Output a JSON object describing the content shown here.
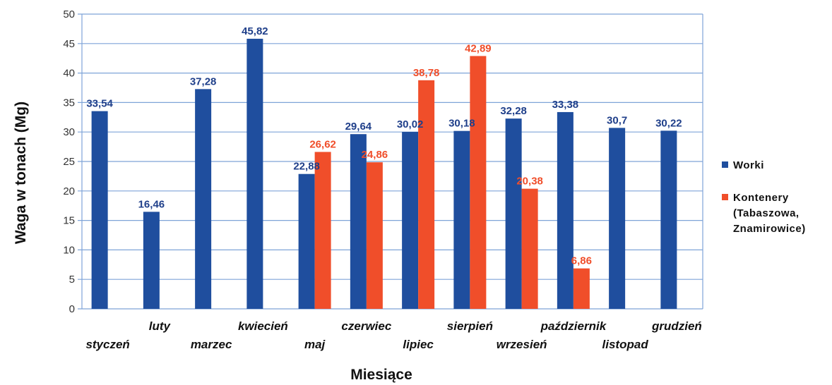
{
  "chart_data": {
    "type": "bar",
    "xlabel": "Miesiące",
    "ylabel": "Waga w tonach (Mg)",
    "ylim": [
      0,
      50
    ],
    "yticks": [
      0,
      5,
      10,
      15,
      20,
      25,
      30,
      35,
      40,
      45,
      50
    ],
    "grid": true,
    "legend_position": "right",
    "categories": [
      "styczeń",
      "luty",
      "marzec",
      "kwiecień",
      "maj",
      "czerwiec",
      "lipiec",
      "sierpień",
      "wrzesień",
      "październik",
      "listopad",
      "grudzień"
    ],
    "series": [
      {
        "name": "Worki",
        "color": "#1f4e9e",
        "label_color": "#1f3f8a",
        "values": [
          33.54,
          16.46,
          37.28,
          45.82,
          22.88,
          29.64,
          30.02,
          30.18,
          32.28,
          33.38,
          30.7,
          30.22
        ],
        "labels": [
          "33,54",
          "16,46",
          "37,28",
          "45,82",
          "22,88",
          "29,64",
          "30,02",
          "30,18",
          "32,28",
          "33,38",
          "30,7",
          "30,22"
        ]
      },
      {
        "name": "Kontenery (Tabaszowa, Znamirowice)",
        "name_lines": [
          "Kontenery",
          "(Tabaszowa,",
          "Znamirowice)"
        ],
        "color": "#f04e2a",
        "label_color": "#f04e2a",
        "values": [
          null,
          null,
          null,
          null,
          26.62,
          24.86,
          38.78,
          42.89,
          20.38,
          6.86,
          null,
          null
        ],
        "labels": [
          "",
          "",
          "",
          "",
          "26,62",
          "24,86",
          "38,78",
          "42,89",
          "20,38",
          "6,86",
          "",
          ""
        ]
      }
    ]
  }
}
